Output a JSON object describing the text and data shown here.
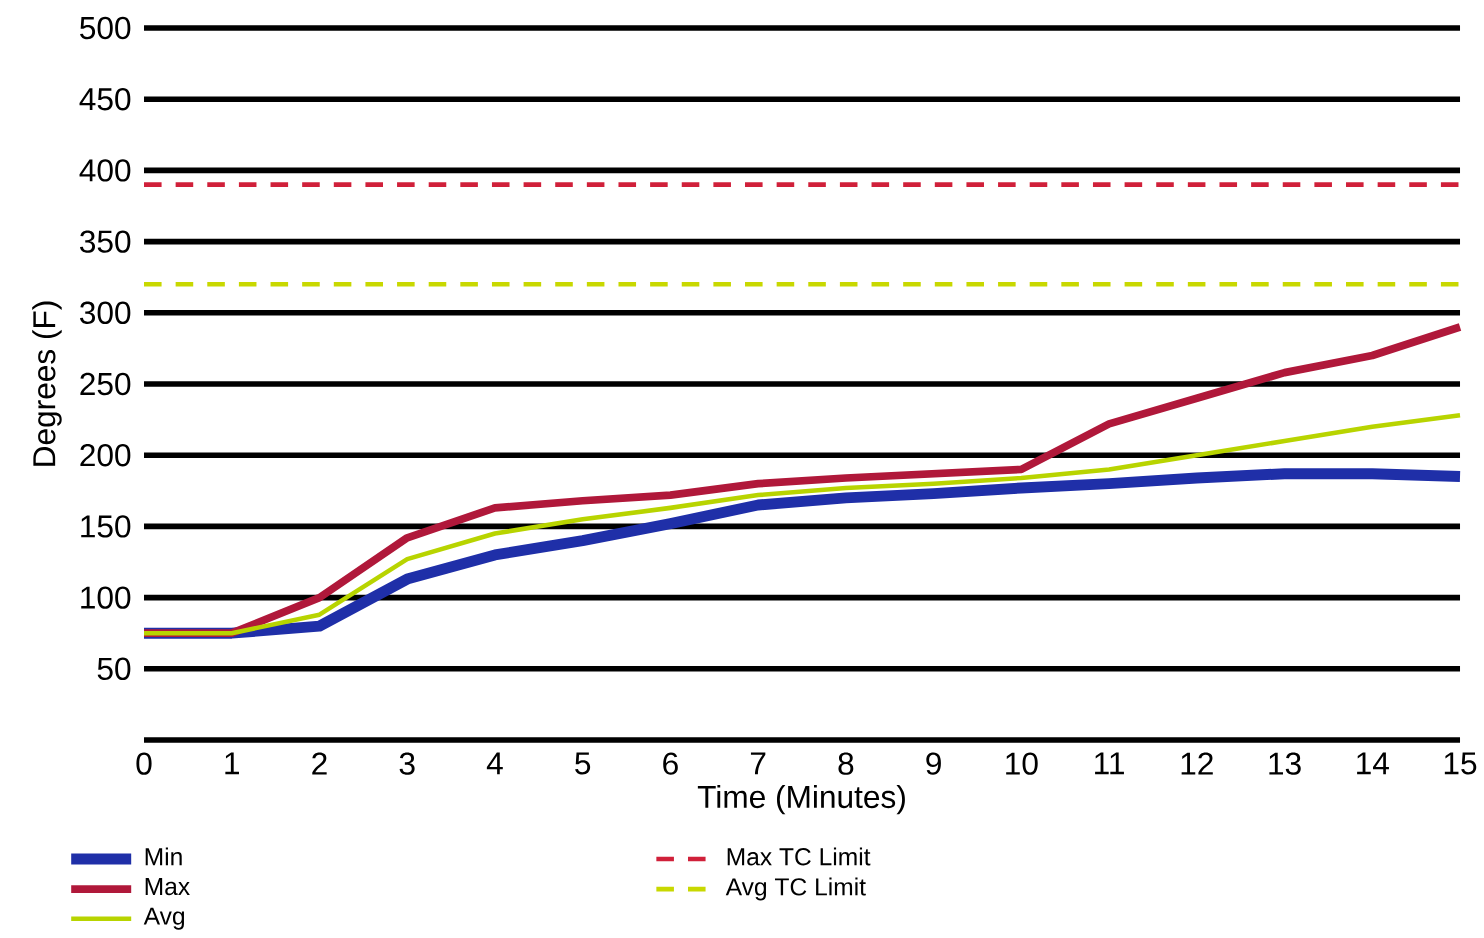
{
  "chart_data": {
    "type": "line",
    "xlabel": "Time (Minutes)",
    "ylabel": "Degrees (F)",
    "x": [
      0,
      1,
      2,
      3,
      4,
      5,
      6,
      7,
      8,
      9,
      10,
      11,
      12,
      13,
      14,
      15
    ],
    "series": [
      {
        "name": "Min",
        "color": "#1f2fa8",
        "values": [
          75,
          75,
          80,
          113,
          130,
          140,
          152,
          165,
          170,
          173,
          177,
          180,
          184,
          187,
          187,
          185
        ]
      },
      {
        "name": "Max",
        "color": "#b0183a",
        "values": [
          75,
          75,
          100,
          142,
          163,
          168,
          172,
          180,
          184,
          187,
          190,
          222,
          240,
          258,
          270,
          290
        ]
      },
      {
        "name": "Avg",
        "color": "#b8d400",
        "values": [
          75,
          75,
          88,
          127,
          145,
          155,
          163,
          172,
          177,
          180,
          184,
          190,
          200,
          210,
          220,
          228
        ]
      }
    ],
    "ref_lines": [
      {
        "axis": "y",
        "value": 390,
        "label": "Max TC Limit",
        "color": "#d0203a",
        "line_style": "dashed"
      },
      {
        "axis": "y",
        "value": 320,
        "label": "Avg TC Limit",
        "color": "#c8d800",
        "line_style": "dashed"
      }
    ],
    "xlim": [
      0,
      15
    ],
    "ylim": [
      0,
      500
    ],
    "xticks": [
      0,
      1,
      2,
      3,
      4,
      5,
      6,
      7,
      8,
      9,
      10,
      11,
      12,
      13,
      14,
      15
    ],
    "yticks": [
      {
        "value": 0,
        "label": null
      },
      50,
      100,
      150,
      200,
      250,
      300,
      350,
      400,
      450,
      500
    ],
    "grid": "y",
    "legend": "bottom",
    "marker": "none",
    "line_style": "solid"
  }
}
